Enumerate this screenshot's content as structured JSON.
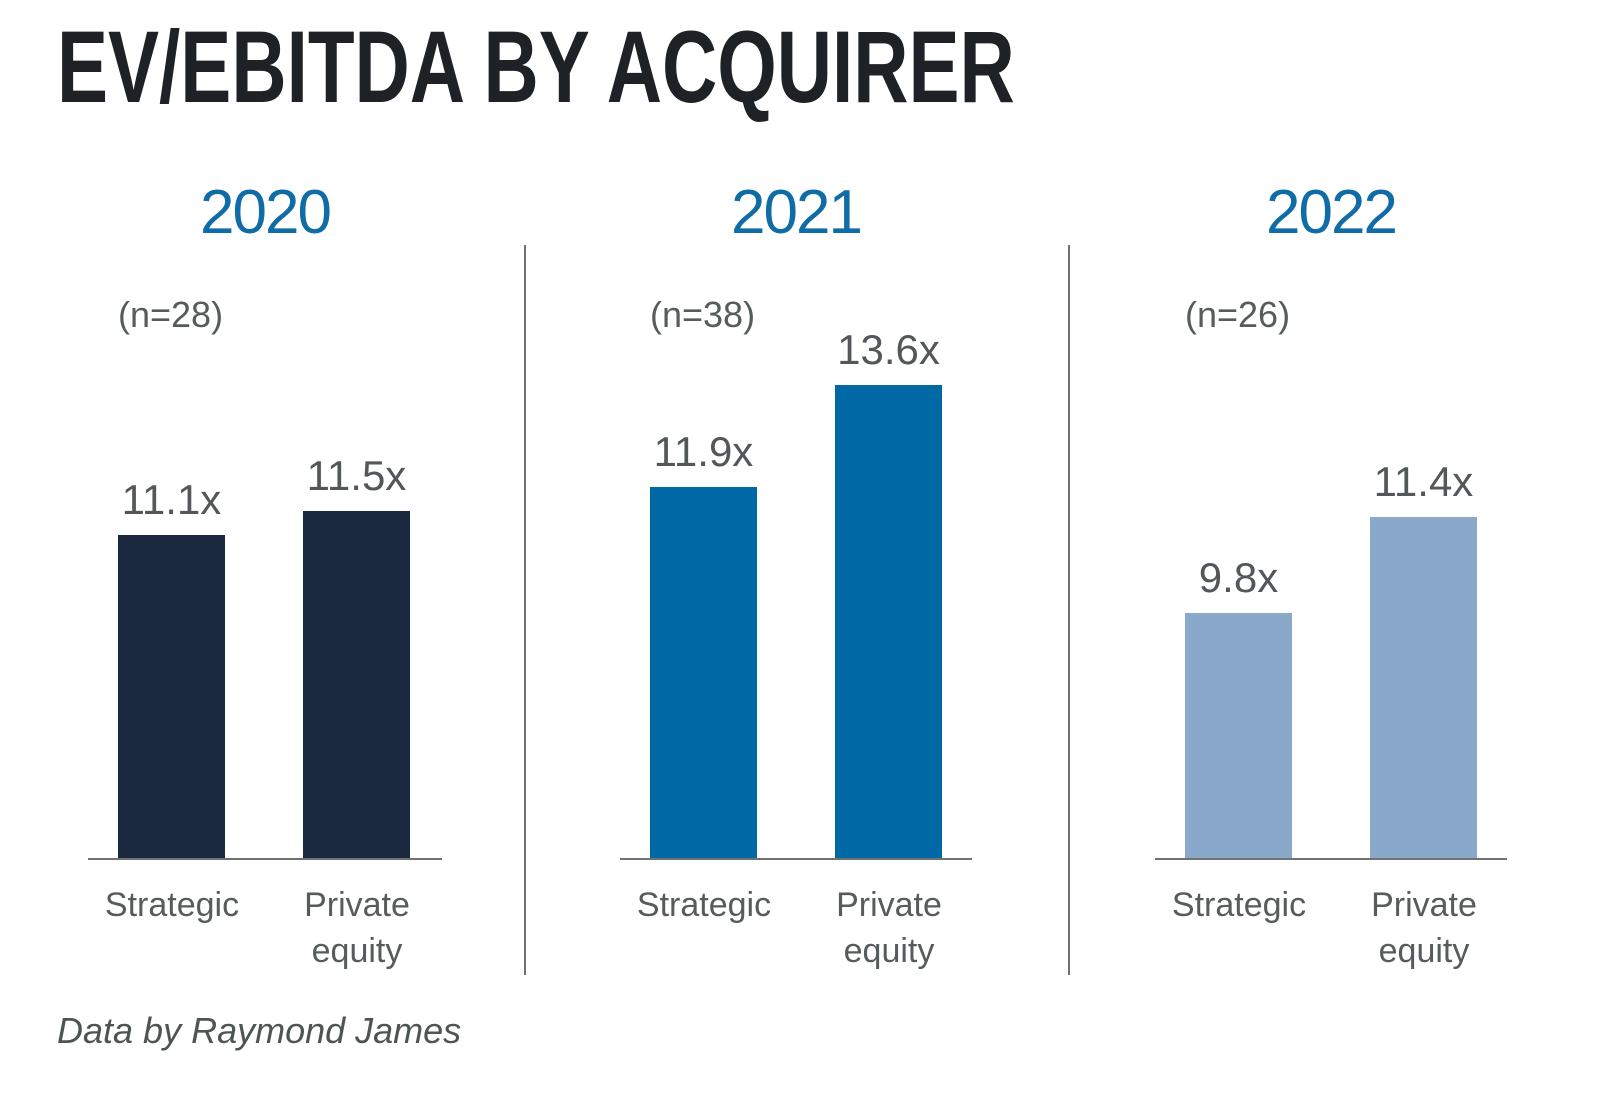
{
  "title": "EV/EBITDA BY ACQUIRER",
  "source_note": "Data by Raymond James",
  "colors": {
    "title_text": "#1e2125",
    "year_heading": "#0f6ca6",
    "label_gray": "#565b5b",
    "value_gray": "#53575a",
    "axis_gray": "#6e7372",
    "source_gray": "#4d5551"
  },
  "chart_data": {
    "type": "bar",
    "title": "EV/EBITDA BY ACQUIRER",
    "unit": "EV/EBITDA multiple (x)",
    "layout": "three small-multiple panels by year, value labels above bars, no value axis, truncated (non-zero) baseline",
    "categories": [
      "Strategic",
      "Private equity"
    ],
    "ylim_effective": [
      5.7,
      14.5
    ],
    "panels": [
      {
        "year": "2020",
        "n_label": "(n=28)",
        "sample_size": 28,
        "bar_color": "#1b2940",
        "bars": [
          {
            "category": "Strategic",
            "value": 11.1,
            "label": "11.1x"
          },
          {
            "category": "Private equity",
            "value": 11.5,
            "label": "11.5x"
          }
        ]
      },
      {
        "year": "2021",
        "n_label": "(n=38)",
        "sample_size": 38,
        "bar_color": "#0069a5",
        "bars": [
          {
            "category": "Strategic",
            "value": 11.9,
            "label": "11.9x"
          },
          {
            "category": "Private equity",
            "value": 13.6,
            "label": "13.6x"
          }
        ]
      },
      {
        "year": "2022",
        "n_label": "(n=26)",
        "sample_size": 26,
        "bar_color": "#8aa8c9",
        "bars": [
          {
            "category": "Strategic",
            "value": 9.8,
            "label": "9.8x"
          },
          {
            "category": "Private equity",
            "value": 11.4,
            "label": "11.4x"
          }
        ]
      }
    ]
  }
}
